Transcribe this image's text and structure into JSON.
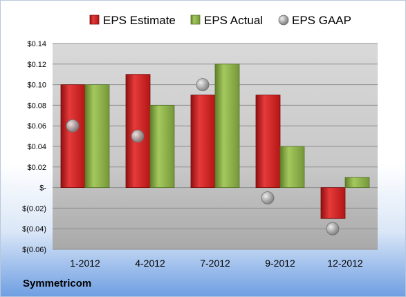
{
  "chart_data": {
    "type": "bar",
    "company": "Symmetricom",
    "categories": [
      "1-2012",
      "4-2012",
      "7-2012",
      "9-2012",
      "12-2012"
    ],
    "series": [
      {
        "name": "EPS Estimate",
        "type": "bar",
        "color": "#cc1f1f",
        "values": [
          0.1,
          0.11,
          0.09,
          0.09,
          -0.03
        ]
      },
      {
        "name": "EPS Actual",
        "type": "bar",
        "color": "#8db24a",
        "values": [
          0.1,
          0.08,
          0.12,
          0.04,
          0.01
        ]
      },
      {
        "name": "EPS GAAP",
        "type": "scatter",
        "color": "#a6a6a6",
        "values": [
          0.06,
          0.05,
          0.1,
          -0.01,
          -0.04
        ]
      }
    ],
    "ylim": [
      -0.06,
      0.14
    ],
    "yticks": [
      -0.06,
      -0.04,
      -0.02,
      0,
      0.02,
      0.04,
      0.06,
      0.08,
      0.1,
      0.12,
      0.14
    ],
    "ytick_labels": [
      "$(0.06)",
      "$(0.04)",
      "$(0.02)",
      "$-",
      "$0.02",
      "$0.04",
      "$0.06",
      "$0.08",
      "$0.10",
      "$0.12",
      "$0.14"
    ],
    "legend_position": "top",
    "grid": true
  }
}
